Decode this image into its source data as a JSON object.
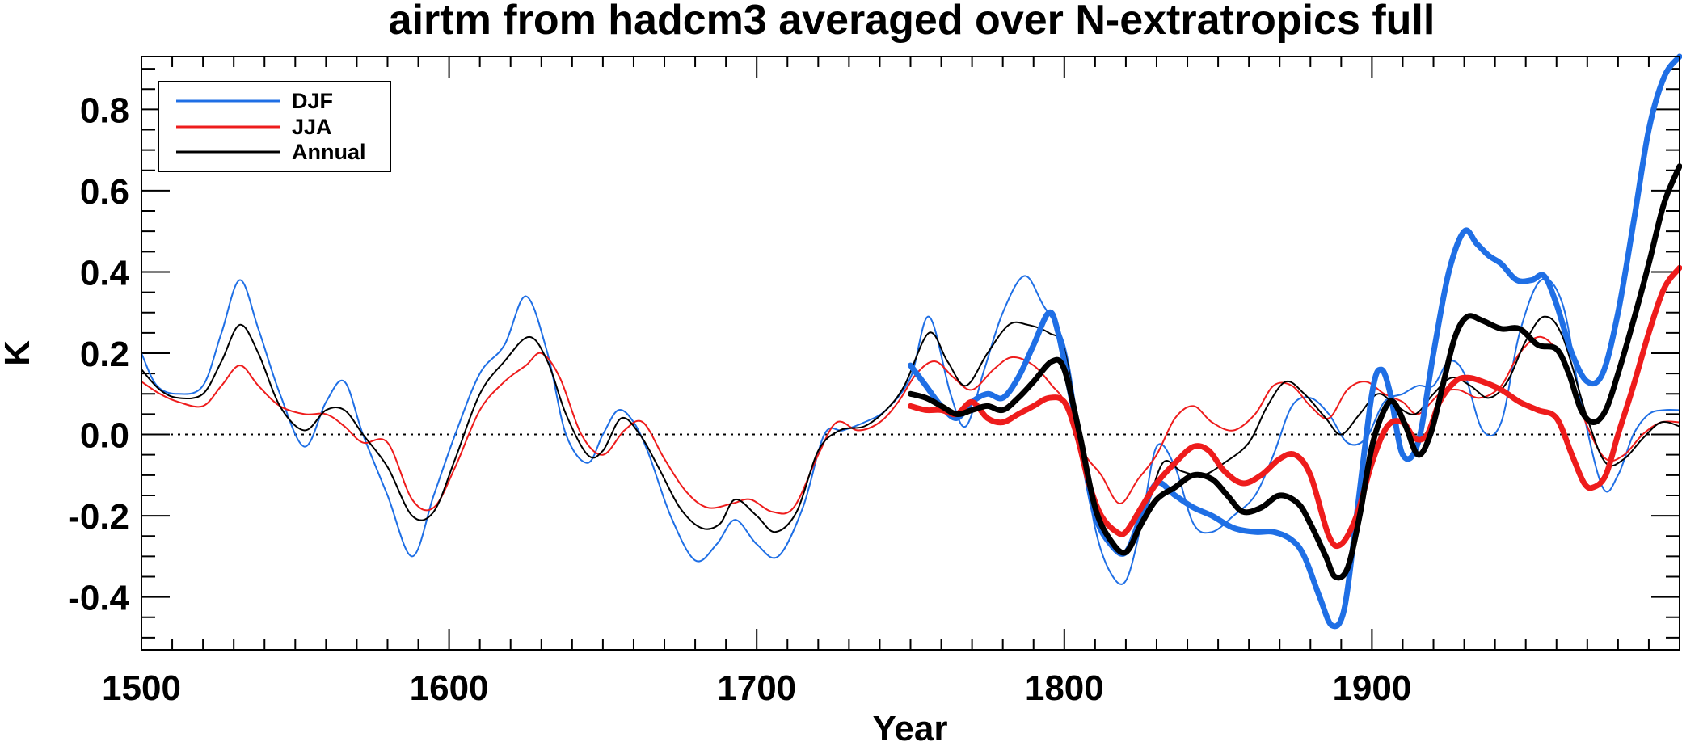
{
  "chart_data": {
    "type": "line",
    "title": "airtm from hadcm3 averaged over N-extratropics full",
    "xlabel": "Year",
    "ylabel": "K",
    "xlim": [
      1500,
      2000
    ],
    "ylim": [
      -0.53,
      0.93
    ],
    "x_ticks": [
      1500,
      1600,
      1700,
      1800,
      1900
    ],
    "x_tick_labels": [
      "1500",
      "1600",
      "1700",
      "1800",
      "1900"
    ],
    "y_ticks": [
      -0.4,
      -0.2,
      0.0,
      0.2,
      0.4,
      0.6,
      0.8
    ],
    "y_tick_labels": [
      "-0.4",
      "-0.2",
      "0.0",
      "0.2",
      "0.4",
      "0.6",
      "0.8"
    ],
    "zero_line": true,
    "legend_position": "top-left",
    "legend": [
      {
        "label": "DJF",
        "color": "#1f6fe5"
      },
      {
        "label": "JJA",
        "color": "#ee1c1c"
      },
      {
        "label": "Annual",
        "color": "#000000"
      }
    ],
    "series": [
      {
        "name": "DJF",
        "style": "thin",
        "color": "#1f6fe5",
        "x": [
          1500,
          1505,
          1512,
          1520,
          1526,
          1532,
          1538,
          1545,
          1553,
          1560,
          1566,
          1572,
          1580,
          1588,
          1595,
          1602,
          1610,
          1618,
          1625,
          1632,
          1638,
          1645,
          1650,
          1655,
          1660,
          1665,
          1672,
          1680,
          1687,
          1693,
          1700,
          1707,
          1715,
          1722,
          1728,
          1735,
          1742,
          1750,
          1756,
          1763,
          1768,
          1774,
          1780,
          1787,
          1793,
          1800,
          1805,
          1810,
          1815,
          1820,
          1825,
          1830,
          1836,
          1842,
          1848,
          1855,
          1862,
          1868,
          1874,
          1880,
          1886,
          1892,
          1898,
          1904,
          1910,
          1915,
          1920,
          1925,
          1930,
          1936,
          1942,
          1948,
          1955,
          1962,
          1968,
          1975,
          1980,
          1985,
          1990,
          1995,
          2000
        ],
        "values": [
          0.2,
          0.12,
          0.1,
          0.12,
          0.25,
          0.38,
          0.26,
          0.1,
          -0.03,
          0.08,
          0.13,
          0.0,
          -0.15,
          -0.3,
          -0.15,
          0.0,
          0.15,
          0.22,
          0.34,
          0.2,
          0.0,
          -0.07,
          0.0,
          0.06,
          0.03,
          -0.05,
          -0.2,
          -0.31,
          -0.27,
          -0.21,
          -0.27,
          -0.3,
          -0.18,
          0.0,
          0.01,
          0.03,
          0.06,
          0.14,
          0.29,
          0.1,
          0.02,
          0.16,
          0.3,
          0.39,
          0.32,
          0.22,
          0.0,
          -0.23,
          -0.34,
          -0.36,
          -0.22,
          -0.03,
          -0.08,
          -0.22,
          -0.24,
          -0.2,
          -0.15,
          -0.05,
          0.07,
          0.09,
          0.05,
          -0.02,
          -0.01,
          0.08,
          0.1,
          0.12,
          0.12,
          0.18,
          0.15,
          0.01,
          0.03,
          0.25,
          0.38,
          0.32,
          0.08,
          -0.13,
          -0.1,
          0.0,
          0.05,
          0.06,
          0.06
        ]
      },
      {
        "name": "JJA",
        "style": "thin",
        "color": "#ee1c1c",
        "x": [
          1500,
          1506,
          1512,
          1520,
          1526,
          1532,
          1538,
          1545,
          1553,
          1560,
          1566,
          1572,
          1580,
          1588,
          1595,
          1602,
          1610,
          1618,
          1625,
          1630,
          1636,
          1643,
          1650,
          1657,
          1663,
          1670,
          1677,
          1684,
          1692,
          1698,
          1705,
          1712,
          1720,
          1726,
          1733,
          1740,
          1746,
          1752,
          1758,
          1764,
          1770,
          1777,
          1783,
          1790,
          1796,
          1800,
          1806,
          1812,
          1818,
          1824,
          1830,
          1836,
          1842,
          1848,
          1855,
          1862,
          1868,
          1874,
          1880,
          1886,
          1892,
          1898,
          1904,
          1910,
          1915,
          1922,
          1928,
          1935,
          1942,
          1948,
          1955,
          1962,
          1970,
          1976,
          1982,
          1988,
          1994,
          2000
        ],
        "values": [
          0.13,
          0.1,
          0.08,
          0.07,
          0.12,
          0.17,
          0.12,
          0.07,
          0.05,
          0.05,
          0.02,
          -0.02,
          -0.02,
          -0.16,
          -0.18,
          -0.08,
          0.06,
          0.13,
          0.17,
          0.2,
          0.14,
          0.0,
          -0.05,
          0.01,
          0.03,
          -0.06,
          -0.14,
          -0.18,
          -0.17,
          -0.16,
          -0.19,
          -0.18,
          -0.05,
          0.03,
          0.01,
          0.03,
          0.08,
          0.15,
          0.18,
          0.14,
          0.11,
          0.16,
          0.19,
          0.17,
          0.12,
          0.08,
          -0.04,
          -0.1,
          -0.17,
          -0.11,
          -0.05,
          0.04,
          0.07,
          0.03,
          0.01,
          0.05,
          0.12,
          0.12,
          0.07,
          0.04,
          0.11,
          0.13,
          0.1,
          0.08,
          0.05,
          0.1,
          0.11,
          0.09,
          0.12,
          0.2,
          0.24,
          0.18,
          0.02,
          -0.06,
          -0.05,
          0.0,
          0.03,
          0.03
        ]
      },
      {
        "name": "Annual",
        "style": "thin",
        "color": "#000000",
        "x": [
          1500,
          1506,
          1512,
          1520,
          1526,
          1532,
          1538,
          1545,
          1553,
          1560,
          1566,
          1572,
          1580,
          1588,
          1595,
          1602,
          1610,
          1618,
          1626,
          1632,
          1638,
          1645,
          1650,
          1656,
          1662,
          1668,
          1675,
          1682,
          1688,
          1693,
          1700,
          1706,
          1713,
          1720,
          1727,
          1735,
          1742,
          1748,
          1756,
          1762,
          1768,
          1775,
          1782,
          1788,
          1795,
          1800,
          1805,
          1810,
          1815,
          1820,
          1826,
          1832,
          1838,
          1845,
          1852,
          1860,
          1866,
          1872,
          1878,
          1885,
          1890,
          1896,
          1902,
          1908,
          1914,
          1920,
          1926,
          1932,
          1938,
          1944,
          1950,
          1956,
          1962,
          1970,
          1976,
          1982,
          1988,
          1994,
          2000
        ],
        "values": [
          0.16,
          0.11,
          0.09,
          0.1,
          0.18,
          0.27,
          0.2,
          0.07,
          0.01,
          0.06,
          0.06,
          0.0,
          -0.08,
          -0.2,
          -0.19,
          -0.06,
          0.1,
          0.18,
          0.24,
          0.18,
          0.05,
          -0.05,
          -0.04,
          0.04,
          0.0,
          -0.08,
          -0.18,
          -0.23,
          -0.22,
          -0.16,
          -0.2,
          -0.24,
          -0.19,
          -0.04,
          0.01,
          0.02,
          0.06,
          0.12,
          0.25,
          0.18,
          0.12,
          0.2,
          0.27,
          0.27,
          0.25,
          0.21,
          0.0,
          -0.18,
          -0.26,
          -0.29,
          -0.2,
          -0.07,
          -0.09,
          -0.1,
          -0.07,
          -0.02,
          0.07,
          0.13,
          0.1,
          0.04,
          0.0,
          0.05,
          0.1,
          0.07,
          0.05,
          0.1,
          0.14,
          0.12,
          0.09,
          0.13,
          0.23,
          0.29,
          0.24,
          0.04,
          -0.07,
          -0.06,
          -0.01,
          0.03,
          0.02
        ]
      },
      {
        "name": "DJF",
        "style": "thick",
        "color": "#1f6fe5",
        "x": [
          1750,
          1755,
          1760,
          1765,
          1770,
          1775,
          1780,
          1785,
          1790,
          1795,
          1798,
          1802,
          1806,
          1810,
          1815,
          1820,
          1825,
          1830,
          1836,
          1842,
          1848,
          1855,
          1862,
          1868,
          1874,
          1878,
          1883,
          1887,
          1891,
          1895,
          1900,
          1903,
          1906,
          1910,
          1915,
          1920,
          1925,
          1930,
          1934,
          1938,
          1942,
          1947,
          1952,
          1956,
          1960,
          1965,
          1970,
          1975,
          1980,
          1985,
          1990,
          1995,
          2000
        ],
        "values": [
          0.17,
          0.12,
          0.07,
          0.04,
          0.08,
          0.1,
          0.09,
          0.14,
          0.22,
          0.3,
          0.25,
          0.1,
          -0.05,
          -0.2,
          -0.27,
          -0.29,
          -0.2,
          -0.12,
          -0.15,
          -0.18,
          -0.2,
          -0.23,
          -0.24,
          -0.24,
          -0.26,
          -0.3,
          -0.4,
          -0.47,
          -0.43,
          -0.2,
          0.1,
          0.16,
          0.1,
          -0.05,
          -0.02,
          0.2,
          0.4,
          0.5,
          0.47,
          0.44,
          0.42,
          0.38,
          0.38,
          0.39,
          0.32,
          0.2,
          0.13,
          0.15,
          0.3,
          0.52,
          0.75,
          0.88,
          0.93
        ]
      },
      {
        "name": "JJA",
        "style": "thick",
        "color": "#ee1c1c",
        "x": [
          1750,
          1755,
          1760,
          1765,
          1770,
          1775,
          1780,
          1785,
          1790,
          1795,
          1800,
          1804,
          1808,
          1812,
          1817,
          1820,
          1825,
          1830,
          1836,
          1842,
          1847,
          1852,
          1858,
          1864,
          1870,
          1875,
          1880,
          1886,
          1890,
          1895,
          1900,
          1905,
          1910,
          1914,
          1918,
          1922,
          1927,
          1931,
          1936,
          1942,
          1948,
          1954,
          1960,
          1965,
          1969,
          1972,
          1976,
          1980,
          1985,
          1990,
          1995,
          2000
        ],
        "values": [
          0.07,
          0.06,
          0.06,
          0.05,
          0.08,
          0.04,
          0.03,
          0.05,
          0.07,
          0.09,
          0.08,
          0.0,
          -0.12,
          -0.2,
          -0.24,
          -0.24,
          -0.18,
          -0.12,
          -0.07,
          -0.03,
          -0.04,
          -0.09,
          -0.12,
          -0.1,
          -0.06,
          -0.05,
          -0.1,
          -0.25,
          -0.27,
          -0.2,
          -0.07,
          0.02,
          0.03,
          -0.01,
          0.0,
          0.08,
          0.13,
          0.14,
          0.13,
          0.11,
          0.08,
          0.06,
          0.04,
          -0.05,
          -0.12,
          -0.13,
          -0.1,
          0.0,
          0.12,
          0.25,
          0.36,
          0.41
        ]
      },
      {
        "name": "Annual",
        "style": "thick",
        "color": "#000000",
        "x": [
          1750,
          1755,
          1760,
          1765,
          1770,
          1775,
          1780,
          1785,
          1790,
          1796,
          1800,
          1805,
          1810,
          1815,
          1820,
          1825,
          1830,
          1836,
          1842,
          1848,
          1853,
          1858,
          1864,
          1870,
          1876,
          1880,
          1885,
          1888,
          1892,
          1896,
          1900,
          1904,
          1907,
          1911,
          1915,
          1919,
          1923,
          1927,
          1931,
          1936,
          1942,
          1948,
          1954,
          1960,
          1964,
          1968,
          1972,
          1976,
          1980,
          1985,
          1990,
          1995,
          2000
        ],
        "values": [
          0.1,
          0.09,
          0.07,
          0.05,
          0.06,
          0.07,
          0.06,
          0.09,
          0.13,
          0.18,
          0.16,
          0.0,
          -0.18,
          -0.26,
          -0.29,
          -0.22,
          -0.16,
          -0.13,
          -0.1,
          -0.11,
          -0.15,
          -0.19,
          -0.18,
          -0.15,
          -0.17,
          -0.22,
          -0.3,
          -0.35,
          -0.33,
          -0.2,
          -0.03,
          0.06,
          0.08,
          0.02,
          -0.05,
          0.0,
          0.12,
          0.24,
          0.29,
          0.28,
          0.26,
          0.26,
          0.22,
          0.21,
          0.15,
          0.06,
          0.03,
          0.06,
          0.15,
          0.28,
          0.42,
          0.57,
          0.66
        ]
      }
    ]
  }
}
